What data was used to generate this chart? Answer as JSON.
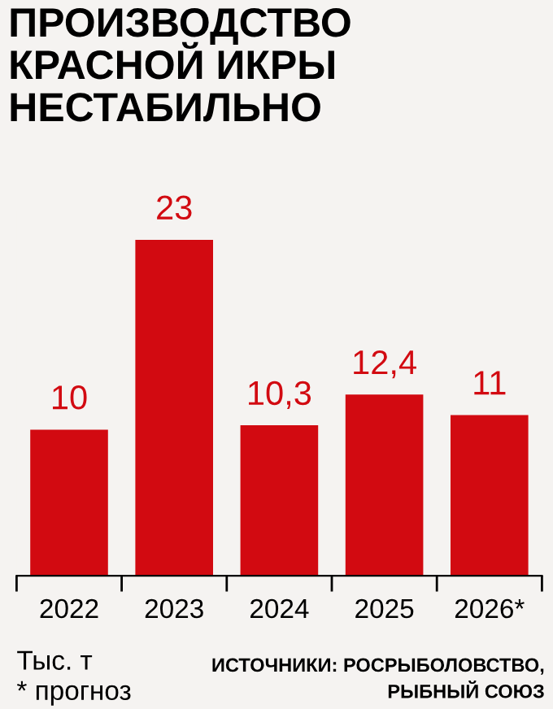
{
  "chart_data": {
    "type": "bar",
    "title": "ПРОИЗВОДСТВО\nКРАСНОЙ ИКРЫ\nНЕСТАБИЛЬНО",
    "categories": [
      "2022",
      "2023",
      "2024",
      "2025",
      "2026*"
    ],
    "values": [
      10,
      23,
      10.3,
      12.4,
      11
    ],
    "value_labels": [
      "10",
      "23",
      "10,3",
      "12,4",
      "11"
    ],
    "color": "#d20a11",
    "grid": false,
    "legend": false,
    "annotations": [
      "Тыс. т\n* прогноз",
      "ИСТОЧНИКИ: РОСРЫБОЛОВСТВО,\nРЫБНЫЙ СОЮЗ"
    ]
  }
}
